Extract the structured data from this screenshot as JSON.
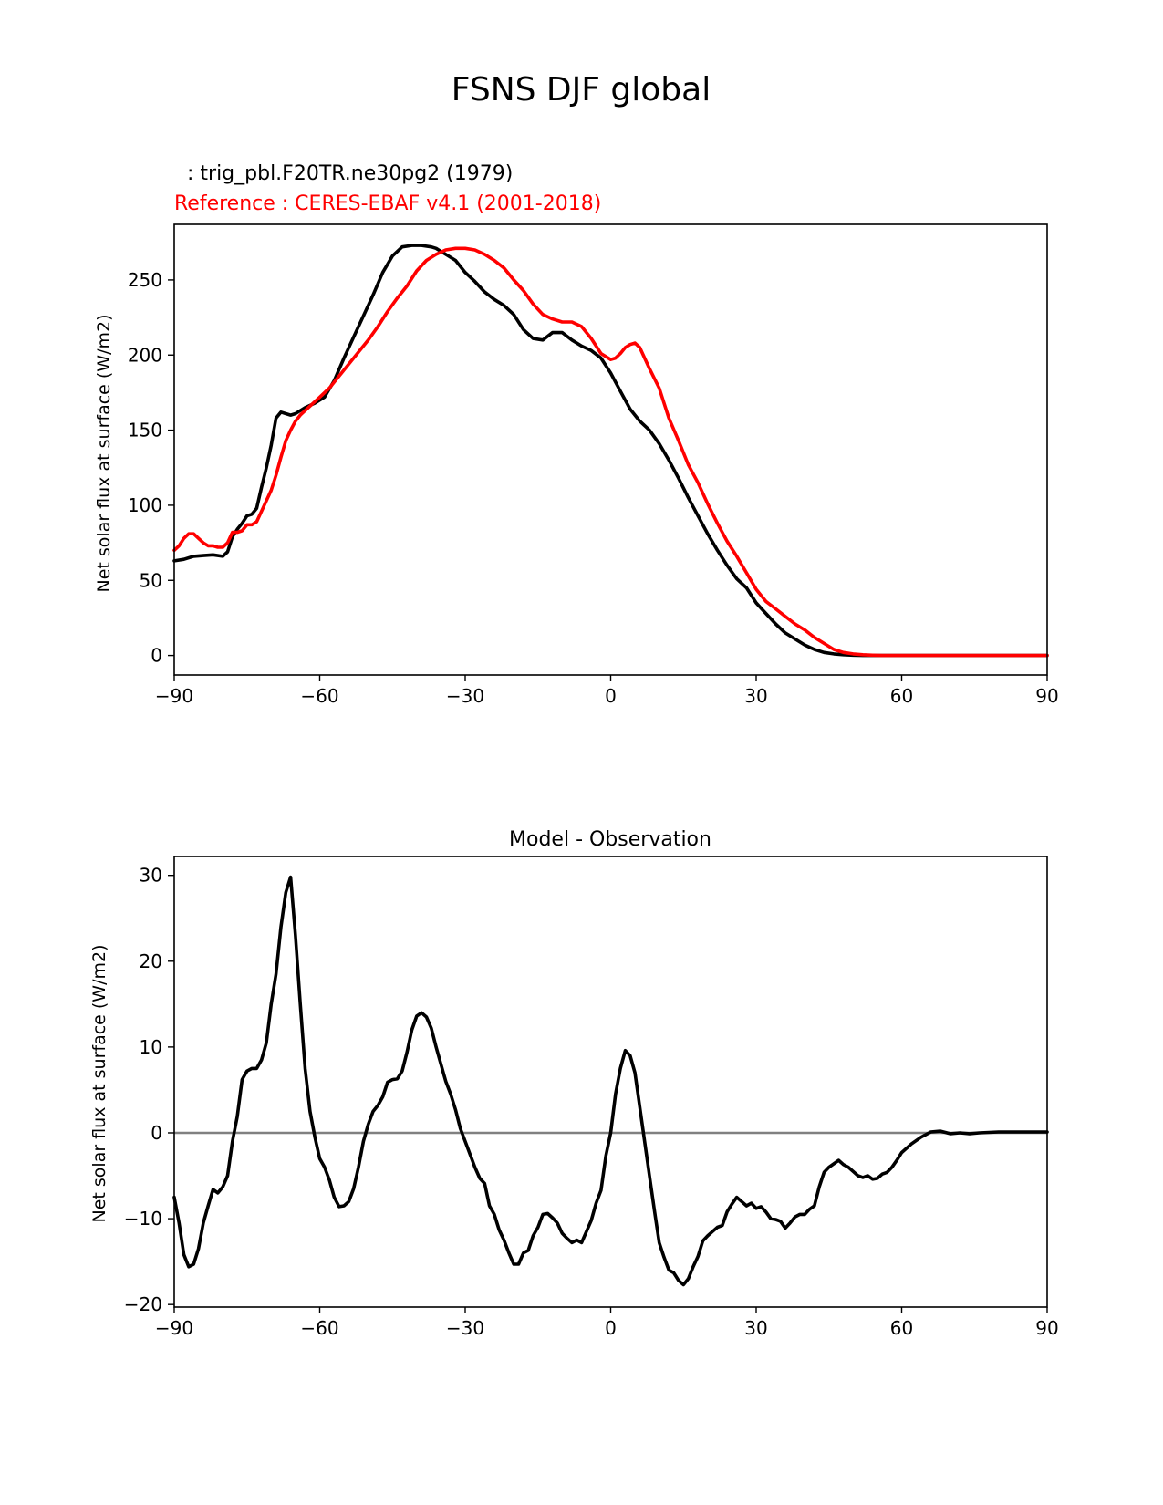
{
  "title": "FSNS DJF global",
  "colors": {
    "test": "#000000",
    "reference": "#ff0000",
    "zero_line": "#808080",
    "frame": "#000000"
  },
  "chart_data": [
    {
      "type": "line",
      "test_label": "  : trig_pbl.F20TR.ne30pg2 (1979)",
      "reference_label": "Reference : CERES-EBAF v4.1 (2001-2018)",
      "xlabel": "",
      "ylabel": "Net solar flux at surface (W/m2)",
      "xlim": [
        -90,
        90
      ],
      "ylim": [
        -13,
        287
      ],
      "xticks": [
        -90,
        -60,
        -30,
        0,
        30,
        60,
        90
      ],
      "xtick_labels": [
        "−90",
        "−60",
        "−30",
        "0",
        "30",
        "60",
        "90"
      ],
      "yticks": [
        0,
        50,
        100,
        150,
        200,
        250
      ],
      "ytick_labels": [
        "0",
        "50",
        "100",
        "150",
        "200",
        "250"
      ],
      "grid": false,
      "series": [
        {
          "key": "test",
          "color": "#000000",
          "x": [
            -90,
            -88,
            -86,
            -84,
            -82,
            -80,
            -79,
            -78,
            -77,
            -76,
            -75,
            -74,
            -73,
            -72,
            -71,
            -70,
            -69,
            -68,
            -67,
            -66,
            -65,
            -63,
            -61,
            -59,
            -57,
            -55,
            -53,
            -51,
            -49,
            -47,
            -45,
            -43,
            -41,
            -39,
            -37,
            -36,
            -35,
            -34,
            -32,
            -30,
            -28,
            -26,
            -24,
            -22,
            -20,
            -18,
            -16,
            -14,
            -12,
            -10,
            -8,
            -6,
            -4,
            -2,
            0,
            2,
            4,
            6,
            8,
            10,
            12,
            14,
            16,
            18,
            20,
            22,
            24,
            26,
            28,
            30,
            32,
            34,
            36,
            38,
            40,
            42,
            44,
            46,
            48,
            50,
            52,
            54,
            56,
            58,
            60,
            62,
            64,
            66,
            68,
            70,
            72,
            75,
            80,
            85,
            90
          ],
          "y": [
            63,
            64,
            66,
            66.5,
            67,
            66,
            69,
            79,
            84,
            88,
            93,
            94,
            98,
            112,
            125,
            140,
            158,
            162,
            161,
            160,
            161,
            165,
            168,
            172,
            183,
            198,
            212,
            226,
            240,
            255,
            266,
            272,
            273,
            273,
            272,
            271,
            269,
            267,
            263,
            255,
            249,
            242,
            237,
            233,
            227,
            217,
            211,
            210,
            215,
            215,
            210,
            206,
            203,
            198,
            188,
            176,
            164,
            156,
            150,
            141,
            130,
            118,
            105,
            93,
            81,
            70,
            60,
            51,
            45,
            35,
            28,
            21,
            15,
            11,
            7,
            4,
            2,
            1,
            0.5,
            0.2,
            0,
            0,
            0,
            0,
            0,
            0,
            0,
            0,
            0,
            0,
            0,
            0,
            0,
            0,
            0
          ]
        },
        {
          "key": "reference",
          "color": "#ff0000",
          "x": [
            -90,
            -89,
            -88,
            -87,
            -86,
            -85,
            -84,
            -83,
            -82,
            -81,
            -80,
            -79,
            -78,
            -77,
            -76,
            -75,
            -74,
            -73,
            -72,
            -71,
            -70,
            -69,
            -68,
            -67,
            -66,
            -65,
            -64,
            -62,
            -60,
            -58,
            -56,
            -54,
            -52,
            -50,
            -48,
            -46,
            -44,
            -42,
            -40,
            -38,
            -36,
            -34,
            -32,
            -30,
            -28,
            -26,
            -24,
            -22,
            -20,
            -18,
            -16,
            -14,
            -12,
            -10,
            -8,
            -6,
            -4,
            -2,
            0,
            1,
            2,
            3,
            4,
            5,
            6,
            8,
            10,
            11,
            12,
            14,
            16,
            18,
            20,
            22,
            24,
            26,
            28,
            30,
            32,
            34,
            36,
            38,
            40,
            42,
            44,
            46,
            48,
            50,
            52,
            54,
            56,
            58,
            60,
            62,
            64,
            66,
            68,
            70,
            72,
            75,
            80,
            90
          ],
          "y": [
            70,
            73,
            78,
            81,
            81,
            78,
            75,
            73,
            73,
            72,
            72,
            75,
            82,
            82,
            83,
            87,
            87,
            89,
            96,
            103,
            110,
            120,
            132,
            143,
            150,
            156,
            160,
            166,
            172,
            178,
            186,
            194,
            202,
            210,
            219,
            229,
            238,
            246,
            256,
            263,
            267,
            270,
            271,
            271,
            270,
            267,
            263,
            258,
            250,
            243,
            234,
            227,
            224,
            222,
            222,
            219,
            211,
            201,
            197,
            198,
            201,
            205,
            207,
            208,
            205,
            191,
            178,
            168,
            158,
            143,
            127,
            115,
            101,
            88,
            76,
            66,
            55,
            44,
            36,
            31,
            26,
            21,
            17,
            12,
            8,
            4,
            2,
            1,
            0.5,
            0.2,
            0,
            0,
            0,
            0,
            0,
            0,
            0,
            0,
            0,
            0,
            0,
            0
          ]
        }
      ]
    },
    {
      "type": "line",
      "title": "Model - Observation",
      "xlabel": "",
      "ylabel": "Net solar flux at surface (W/m2)",
      "xlim": [
        -90,
        90
      ],
      "ylim": [
        -20.3,
        32.2
      ],
      "xticks": [
        -90,
        -60,
        -30,
        0,
        30,
        60,
        90
      ],
      "xtick_labels": [
        "−90",
        "−60",
        "−30",
        "0",
        "30",
        "60",
        "90"
      ],
      "yticks": [
        -20,
        -10,
        0,
        10,
        20,
        30
      ],
      "ytick_labels": [
        "−20",
        "−10",
        "0",
        "10",
        "20",
        "30"
      ],
      "grid": false,
      "zero_line": 0,
      "series": [
        {
          "key": "difference",
          "color": "#000000",
          "x": [
            -90,
            -89,
            -88,
            -87,
            -86,
            -85,
            -84,
            -83,
            -82,
            -81,
            -80,
            -79,
            -78,
            -77,
            -76,
            -75,
            -74,
            -73,
            -72,
            -71,
            -70,
            -69,
            -68,
            -67,
            -66,
            -65,
            -64,
            -63,
            -62,
            -61,
            -60,
            -59,
            -58,
            -57,
            -56,
            -55,
            -54,
            -53,
            -52,
            -51,
            -50,
            -49,
            -48,
            -47,
            -46,
            -45,
            -44,
            -43,
            -42,
            -41,
            -40,
            -39,
            -38,
            -37,
            -36,
            -35,
            -34,
            -33,
            -32,
            -31,
            -30,
            -29,
            -28,
            -27,
            -26,
            -25,
            -24,
            -23,
            -22,
            -21,
            -20,
            -19,
            -18,
            -17,
            -16,
            -15,
            -14,
            -13,
            -12,
            -11,
            -10,
            -9,
            -8,
            -7,
            -6,
            -5,
            -4,
            -3,
            -2,
            -1,
            0,
            1,
            2,
            3,
            4,
            5,
            6,
            7,
            8,
            9,
            10,
            11,
            12,
            13,
            14,
            15,
            16,
            17,
            18,
            19,
            20,
            21,
            22,
            23,
            24,
            25,
            26,
            27,
            28,
            29,
            30,
            31,
            32,
            33,
            34,
            35,
            36,
            37,
            38,
            39,
            40,
            41,
            42,
            43,
            44,
            45,
            46,
            47,
            48,
            49,
            50,
            51,
            52,
            53,
            54,
            55,
            56,
            57,
            58,
            59,
            60,
            62,
            64,
            66,
            68,
            70,
            72,
            74,
            76,
            78,
            80,
            85,
            90
          ],
          "y": [
            -7.5,
            -10.5,
            -14.2,
            -15.6,
            -15.3,
            -13.5,
            -10.5,
            -8.5,
            -6.6,
            -7.0,
            -6.3,
            -5.0,
            -1.0,
            1.9,
            6.2,
            7.2,
            7.5,
            7.5,
            8.5,
            10.5,
            15.0,
            18.5,
            24.0,
            28.0,
            29.8,
            23.0,
            15.0,
            7.5,
            2.5,
            -0.5,
            -3.0,
            -4.0,
            -5.5,
            -7.5,
            -8.6,
            -8.5,
            -8.0,
            -6.5,
            -4.0,
            -1.0,
            1.0,
            2.5,
            3.2,
            4.2,
            5.9,
            6.2,
            6.3,
            7.2,
            9.4,
            12.0,
            13.6,
            14.0,
            13.5,
            12.2,
            10.0,
            8.0,
            6.0,
            4.5,
            2.7,
            0.5,
            -1.0,
            -2.5,
            -4.0,
            -5.3,
            -5.9,
            -8.5,
            -9.5,
            -11.3,
            -12.5,
            -14.0,
            -15.3,
            -15.3,
            -14.0,
            -13.7,
            -12.0,
            -11.0,
            -9.5,
            -9.4,
            -9.9,
            -10.5,
            -11.7,
            -12.3,
            -12.8,
            -12.5,
            -12.8,
            -11.5,
            -10.2,
            -8.2,
            -6.7,
            -2.7,
            0.0,
            4.5,
            7.5,
            9.6,
            9.0,
            7.0,
            3.0,
            -1.0,
            -5.0,
            -9.0,
            -12.8,
            -14.5,
            -16.0,
            -16.3,
            -17.2,
            -17.7,
            -17.0,
            -15.6,
            -14.4,
            -12.6,
            -12.0,
            -11.5,
            -11.0,
            -10.8,
            -9.2,
            -8.3,
            -7.5,
            -8.0,
            -8.5,
            -8.2,
            -8.8,
            -8.6,
            -9.2,
            -10.0,
            -10.1,
            -10.3,
            -11.1,
            -10.5,
            -9.8,
            -9.5,
            -9.5,
            -8.9,
            -8.5,
            -6.3,
            -4.6,
            -4.0,
            -3.6,
            -3.2,
            -3.7,
            -4.0,
            -4.5,
            -5.0,
            -5.2,
            -5.0,
            -5.4,
            -5.3,
            -4.8,
            -4.6,
            -4.0,
            -3.2,
            -2.3,
            -1.3,
            -0.5,
            0.1,
            0.2,
            -0.1,
            0.0,
            -0.1,
            0.0,
            0.05,
            0.1,
            0.1,
            0.1
          ]
        }
      ]
    }
  ]
}
